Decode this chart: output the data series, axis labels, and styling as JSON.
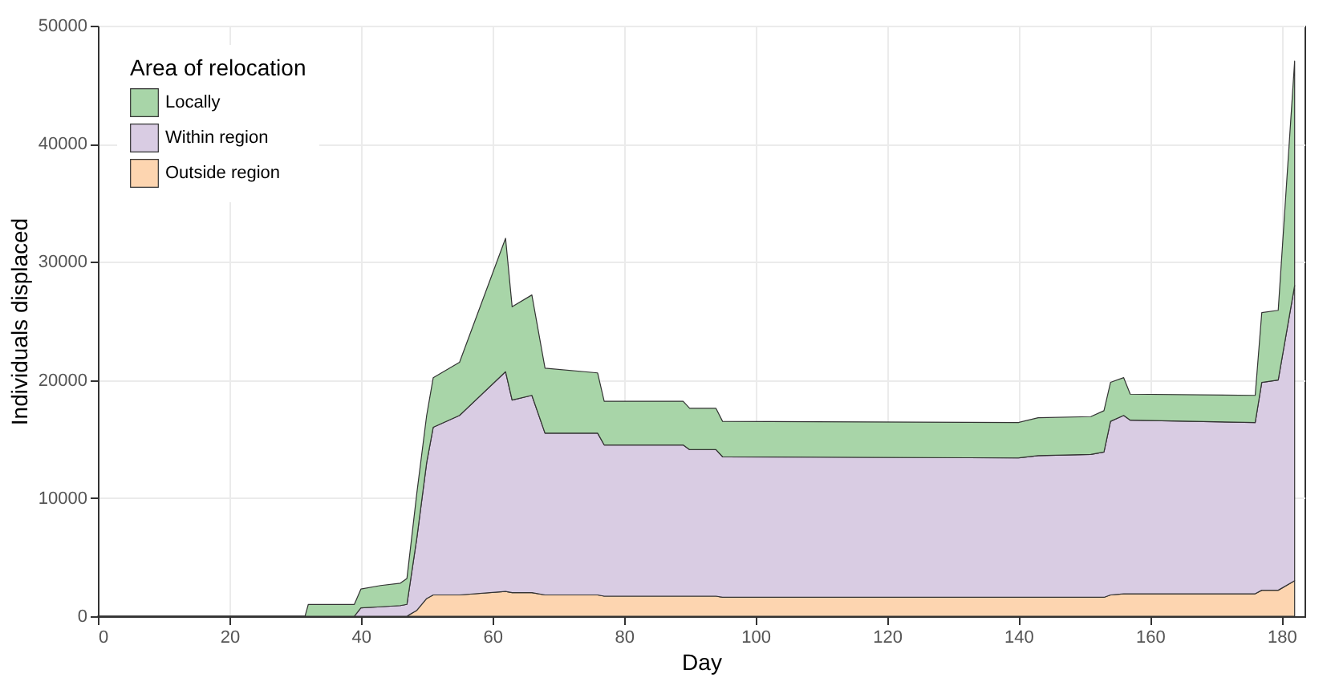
{
  "chart_data": {
    "type": "area",
    "stacked": true,
    "xlabel": "Day",
    "ylabel": "Individuals displaced",
    "legend_title": "Area of relocation",
    "legend": "top left",
    "grid": true,
    "x": [
      0,
      31.5,
      32,
      39,
      40,
      43,
      46,
      47,
      48.5,
      50,
      51,
      55,
      62,
      63,
      66,
      68,
      76,
      77,
      89,
      90,
      94,
      95,
      140,
      143,
      151,
      153,
      154,
      156,
      157,
      176,
      177,
      179.5,
      182
    ],
    "xlim": [
      0,
      183.5
    ],
    "xticks": [
      0,
      20,
      40,
      60,
      80,
      100,
      120,
      140,
      160,
      180
    ],
    "ylim": [
      0,
      50000
    ],
    "yticks": [
      0,
      10000,
      20000,
      30000,
      40000,
      50000
    ],
    "series": [
      {
        "name": "Outside region",
        "color": "#fdd5b0",
        "values": [
          0,
          0,
          0,
          0,
          0,
          0,
          0,
          0,
          500,
          1500,
          1800,
          1800,
          2100,
          2000,
          2000,
          1800,
          1800,
          1700,
          1700,
          1700,
          1700,
          1600,
          1600,
          1600,
          1600,
          1600,
          1800,
          1900,
          1900,
          1900,
          2200,
          2200,
          3000
        ]
      },
      {
        "name": "Within region",
        "color": "#d9cce3",
        "values": [
          0,
          0,
          0,
          0,
          700,
          800,
          900,
          1000,
          6100,
          11500,
          14200,
          15200,
          18600,
          16300,
          16700,
          13700,
          13700,
          12800,
          12800,
          12400,
          12400,
          11900,
          11800,
          12000,
          12100,
          12300,
          14700,
          15100,
          14700,
          14500,
          17600,
          17800,
          25000
        ]
      },
      {
        "name": "Locally",
        "color": "#a8d5a8",
        "values": [
          0,
          0,
          1000,
          1000,
          1600,
          1800,
          1900,
          2200,
          3800,
          4000,
          4200,
          4500,
          11300,
          7900,
          8500,
          5500,
          5100,
          3700,
          3700,
          3500,
          3500,
          3000,
          3000,
          3200,
          3200,
          3500,
          3300,
          3200,
          2200,
          2300,
          5900,
          5900,
          19000
        ]
      }
    ]
  }
}
